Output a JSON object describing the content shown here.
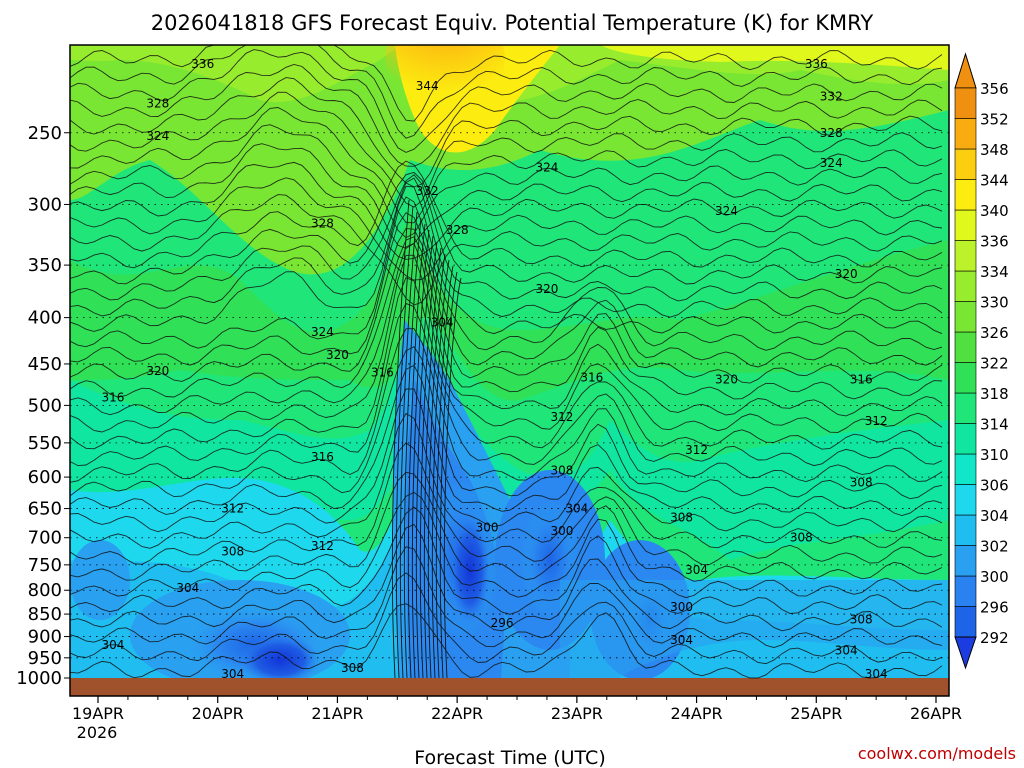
{
  "chart_data": {
    "type": "heatmap",
    "title": "2026041818 GFS Forecast Equiv. Potential Temperature (K) for KMRY",
    "xlabel": "Forecast Time (UTC)",
    "ylabel": "",
    "watermark": "coolwx.com/models",
    "x_ticks": [
      "19APR",
      "20APR",
      "21APR",
      "22APR",
      "23APR",
      "24APR",
      "25APR",
      "26APR"
    ],
    "x_year_label": "2026",
    "y_ticks": [
      250,
      300,
      350,
      400,
      450,
      500,
      550,
      600,
      650,
      700,
      750,
      800,
      850,
      900,
      950,
      1000
    ],
    "ylim": [
      1000,
      200
    ],
    "y_scale": "log",
    "units": "K",
    "colorbar": {
      "levels": [
        292,
        296,
        300,
        302,
        304,
        306,
        310,
        314,
        318,
        322,
        326,
        330,
        334,
        336,
        340,
        344,
        348,
        352,
        356
      ],
      "colors": [
        "#1a3ce0",
        "#1e64e6",
        "#2a82f0",
        "#2aa0f0",
        "#20bef0",
        "#1ed8ee",
        "#10e6c8",
        "#10e6a0",
        "#20e67a",
        "#30e056",
        "#50e040",
        "#78e632",
        "#98ec2e",
        "#bcf22a",
        "#e0f81c",
        "#fcec10",
        "#fcce10",
        "#f8ac10",
        "#f09010"
      ],
      "extend": "both"
    },
    "contour_labels": [
      {
        "text": "336",
        "time": "19APR 21Z",
        "p": 210
      },
      {
        "text": "328",
        "time": "19APR 12Z",
        "p": 232
      },
      {
        "text": "324",
        "time": "19APR 12Z",
        "p": 252
      },
      {
        "text": "328",
        "time": "20APR 21Z",
        "p": 315
      },
      {
        "text": "324",
        "time": "20APR 21Z",
        "p": 415
      },
      {
        "text": "320",
        "time": "21APR 00Z",
        "p": 440
      },
      {
        "text": "316",
        "time": "21APR 09Z",
        "p": 460
      },
      {
        "text": "320",
        "time": "19APR 12Z",
        "p": 458
      },
      {
        "text": "316",
        "time": "19APR 03Z",
        "p": 490
      },
      {
        "text": "316",
        "time": "20APR 21Z",
        "p": 570
      },
      {
        "text": "312",
        "time": "20APR 03Z",
        "p": 650
      },
      {
        "text": "312",
        "time": "20APR 21Z",
        "p": 715
      },
      {
        "text": "308",
        "time": "20APR 03Z",
        "p": 725
      },
      {
        "text": "304",
        "time": "19APR 18Z",
        "p": 795
      },
      {
        "text": "304",
        "time": "19APR 03Z",
        "p": 920
      },
      {
        "text": "304",
        "time": "20APR 03Z",
        "p": 990
      },
      {
        "text": "308",
        "time": "21APR 03Z",
        "p": 975
      },
      {
        "text": "344",
        "time": "21APR 18Z",
        "p": 222
      },
      {
        "text": "332",
        "time": "21APR 18Z",
        "p": 290
      },
      {
        "text": "328",
        "time": "22APR 00Z",
        "p": 320
      },
      {
        "text": "324",
        "time": "22APR 18Z",
        "p": 273
      },
      {
        "text": "320",
        "time": "22APR 18Z",
        "p": 372
      },
      {
        "text": "304",
        "time": "21APR 21Z",
        "p": 405
      },
      {
        "text": "316",
        "time": "23APR 03Z",
        "p": 466
      },
      {
        "text": "312",
        "time": "22APR 21Z",
        "p": 515
      },
      {
        "text": "308",
        "time": "22APR 21Z",
        "p": 590
      },
      {
        "text": "304",
        "time": "23APR 00Z",
        "p": 650
      },
      {
        "text": "300",
        "time": "22APR 06Z",
        "p": 682
      },
      {
        "text": "300",
        "time": "22APR 21Z",
        "p": 688
      },
      {
        "text": "296",
        "time": "22APR 09Z",
        "p": 870
      },
      {
        "text": "308",
        "time": "23APR 21Z",
        "p": 665
      },
      {
        "text": "304",
        "time": "24APR 00Z",
        "p": 760
      },
      {
        "text": "300",
        "time": "23APR 21Z",
        "p": 835
      },
      {
        "text": "304",
        "time": "23APR 21Z",
        "p": 908
      },
      {
        "text": "312",
        "time": "24APR 00Z",
        "p": 560
      },
      {
        "text": "324",
        "time": "24APR 06Z",
        "p": 305
      },
      {
        "text": "320",
        "time": "24APR 06Z",
        "p": 468
      },
      {
        "text": "336",
        "time": "25APR 00Z",
        "p": 210
      },
      {
        "text": "332",
        "time": "25APR 03Z",
        "p": 228
      },
      {
        "text": "328",
        "time": "25APR 03Z",
        "p": 250
      },
      {
        "text": "324",
        "time": "25APR 03Z",
        "p": 270
      },
      {
        "text": "320",
        "time": "25APR 06Z",
        "p": 358
      },
      {
        "text": "316",
        "time": "25APR 09Z",
        "p": 468
      },
      {
        "text": "312",
        "time": "25APR 12Z",
        "p": 520
      },
      {
        "text": "308",
        "time": "25APR 09Z",
        "p": 608
      },
      {
        "text": "308",
        "time": "24APR 21Z",
        "p": 700
      },
      {
        "text": "308",
        "time": "25APR 09Z",
        "p": 862
      },
      {
        "text": "304",
        "time": "25APR 06Z",
        "p": 932
      },
      {
        "text": "304",
        "time": "25APR 12Z",
        "p": 990
      }
    ]
  }
}
